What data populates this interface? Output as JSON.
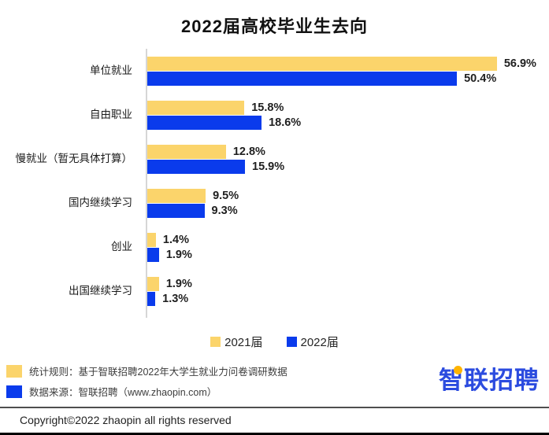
{
  "title": "2022届高校毕业生去向",
  "colors": {
    "series_2021": "#FBD46B",
    "series_2022": "#0A3BEC",
    "logo_blue": "#2B4BDF",
    "logo_dot": "#FFB400",
    "axis_line": "#d6d6d6"
  },
  "chart_data": {
    "type": "bar",
    "orientation": "horizontal",
    "title": "2022届高校毕业生去向",
    "categories": [
      "单位就业",
      "自由职业",
      "慢就业（暂无具体打算）",
      "国内继续学习",
      "创业",
      "出国继续学习"
    ],
    "series": [
      {
        "name": "2021届",
        "color": "#FBD46B",
        "values": [
          56.9,
          15.8,
          12.8,
          9.5,
          1.4,
          1.9
        ]
      },
      {
        "name": "2022届",
        "color": "#0A3BEC",
        "values": [
          50.4,
          18.6,
          15.9,
          9.3,
          1.9,
          1.3
        ]
      }
    ],
    "value_suffix": "%",
    "xlim": [
      0,
      60
    ],
    "grid": false,
    "legend_position": "bottom",
    "data_labels": true
  },
  "notes": [
    {
      "swatch_color": "#FBD46B",
      "text": "统计规则：基于智联招聘2022年大学生就业力问卷调研数据"
    },
    {
      "swatch_color": "#0A3BEC",
      "text": "数据来源：智联招聘（www.zhaopin.com）"
    }
  ],
  "logo": {
    "text": "智联招聘"
  },
  "copyright": "Copyright©2022 zhaopin all rights reserved"
}
